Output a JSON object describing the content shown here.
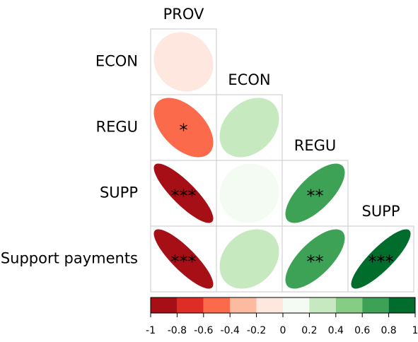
{
  "chart_data": {
    "type": "corrplot",
    "columns": [
      "PROV",
      "ECON",
      "REGU",
      "SUPP"
    ],
    "rows": [
      "ECON",
      "REGU",
      "SUPP",
      "Support payments"
    ],
    "values": [
      [
        -0.1
      ],
      [
        -0.5,
        0.3
      ],
      [
        -0.85,
        0.05,
        0.7
      ],
      [
        -0.85,
        0.25,
        0.7,
        0.85
      ]
    ],
    "stars": [
      [
        null
      ],
      [
        "*",
        null
      ],
      [
        "***",
        null,
        "**"
      ],
      [
        "***",
        null,
        "**",
        "***"
      ]
    ],
    "colors": [
      "#a50f15",
      "#de2d26",
      "#fb6a4a",
      "#fcbba1",
      "#fde7df",
      "#f4fbf2",
      "#c7e9c0",
      "#86cc85",
      "#3da256",
      "#006d2c"
    ],
    "clim": [
      -1,
      1
    ],
    "cticks": [
      -1,
      -0.8,
      -0.6,
      -0.4,
      -0.2,
      0,
      0.2,
      0.4,
      0.6,
      0.8,
      1
    ]
  }
}
